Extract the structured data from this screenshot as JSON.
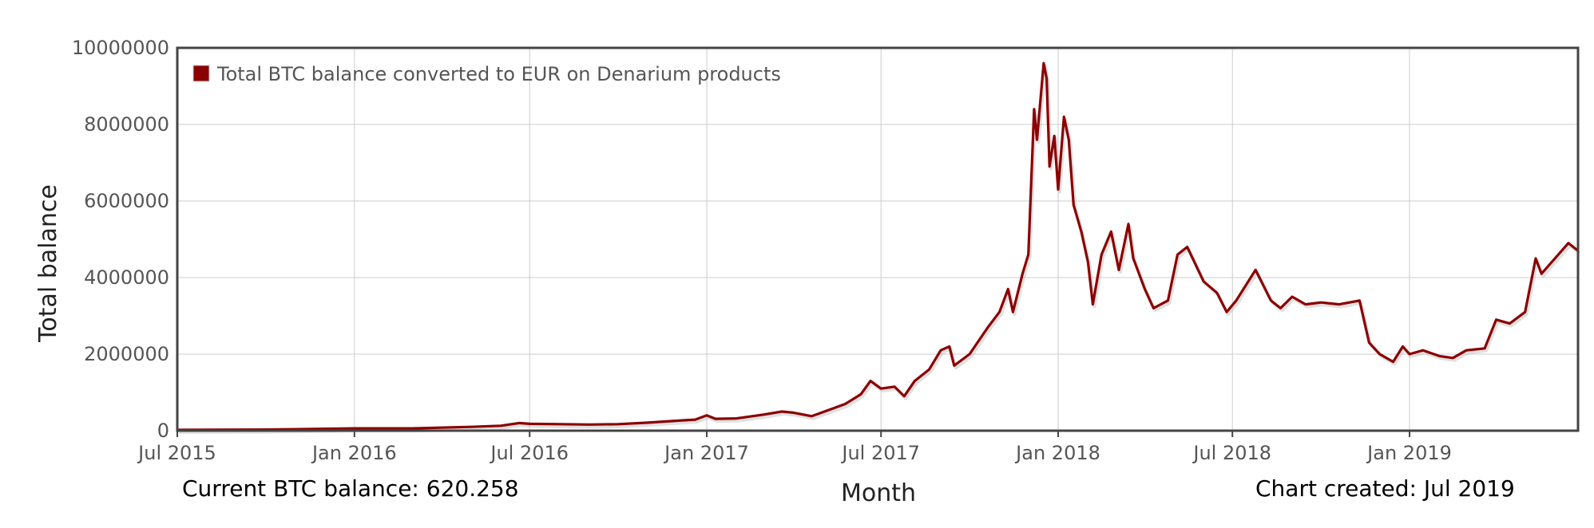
{
  "chart_data": {
    "type": "line",
    "title": "",
    "xlabel": "Month",
    "ylabel": "Total balance",
    "ylim": [
      0,
      10000000
    ],
    "y_ticks": [
      "0",
      "2000000",
      "4000000",
      "6000000",
      "8000000",
      "10000000"
    ],
    "y_tick_values": [
      0,
      2000000,
      4000000,
      6000000,
      8000000,
      10000000
    ],
    "x_ticks": [
      "Jul 2015",
      "Jan 2016",
      "Jul 2016",
      "Jan 2017",
      "Jul 2017",
      "Jan 2018",
      "Jul 2018",
      "Jan 2019"
    ],
    "x_tick_values": [
      "2015-07-01",
      "2016-01-01",
      "2016-07-01",
      "2017-01-01",
      "2017-07-01",
      "2018-01-01",
      "2018-07-01",
      "2019-01-01"
    ],
    "xlim": [
      "2015-07-01",
      "2019-06-25"
    ],
    "grid": true,
    "legend_position": "top-left",
    "series": [
      {
        "name": "Total BTC balance converted to EUR on Denarium products",
        "color": "#8b0000",
        "points": [
          [
            "2015-07-01",
            20000
          ],
          [
            "2015-10-01",
            30000
          ],
          [
            "2016-01-01",
            60000
          ],
          [
            "2016-03-01",
            60000
          ],
          [
            "2016-05-01",
            100000
          ],
          [
            "2016-06-01",
            130000
          ],
          [
            "2016-06-20",
            200000
          ],
          [
            "2016-07-01",
            180000
          ],
          [
            "2016-08-01",
            170000
          ],
          [
            "2016-09-01",
            160000
          ],
          [
            "2016-10-01",
            170000
          ],
          [
            "2016-11-01",
            210000
          ],
          [
            "2016-12-01",
            260000
          ],
          [
            "2016-12-20",
            290000
          ],
          [
            "2017-01-01",
            400000
          ],
          [
            "2017-01-10",
            310000
          ],
          [
            "2017-02-01",
            320000
          ],
          [
            "2017-03-01",
            420000
          ],
          [
            "2017-03-20",
            500000
          ],
          [
            "2017-04-01",
            470000
          ],
          [
            "2017-04-20",
            380000
          ],
          [
            "2017-05-01",
            480000
          ],
          [
            "2017-05-25",
            700000
          ],
          [
            "2017-06-10",
            950000
          ],
          [
            "2017-06-20",
            1300000
          ],
          [
            "2017-07-01",
            1100000
          ],
          [
            "2017-07-15",
            1150000
          ],
          [
            "2017-07-25",
            900000
          ],
          [
            "2017-08-05",
            1300000
          ],
          [
            "2017-08-20",
            1600000
          ],
          [
            "2017-09-01",
            2100000
          ],
          [
            "2017-09-10",
            2200000
          ],
          [
            "2017-09-15",
            1700000
          ],
          [
            "2017-10-01",
            2000000
          ],
          [
            "2017-10-20",
            2700000
          ],
          [
            "2017-11-01",
            3100000
          ],
          [
            "2017-11-10",
            3700000
          ],
          [
            "2017-11-15",
            3100000
          ],
          [
            "2017-11-25",
            4100000
          ],
          [
            "2017-12-01",
            4600000
          ],
          [
            "2017-12-07",
            8400000
          ],
          [
            "2017-12-10",
            7600000
          ],
          [
            "2017-12-17",
            9600000
          ],
          [
            "2017-12-20",
            9200000
          ],
          [
            "2017-12-23",
            6900000
          ],
          [
            "2017-12-28",
            7700000
          ],
          [
            "2018-01-01",
            6300000
          ],
          [
            "2018-01-07",
            8200000
          ],
          [
            "2018-01-12",
            7600000
          ],
          [
            "2018-01-17",
            5900000
          ],
          [
            "2018-01-25",
            5200000
          ],
          [
            "2018-02-01",
            4400000
          ],
          [
            "2018-02-06",
            3300000
          ],
          [
            "2018-02-15",
            4600000
          ],
          [
            "2018-02-25",
            5200000
          ],
          [
            "2018-03-05",
            4200000
          ],
          [
            "2018-03-15",
            5400000
          ],
          [
            "2018-03-20",
            4500000
          ],
          [
            "2018-04-01",
            3700000
          ],
          [
            "2018-04-10",
            3200000
          ],
          [
            "2018-04-25",
            3400000
          ],
          [
            "2018-05-05",
            4600000
          ],
          [
            "2018-05-15",
            4800000
          ],
          [
            "2018-06-01",
            3900000
          ],
          [
            "2018-06-15",
            3600000
          ],
          [
            "2018-06-25",
            3100000
          ],
          [
            "2018-07-05",
            3400000
          ],
          [
            "2018-07-25",
            4200000
          ],
          [
            "2018-08-10",
            3400000
          ],
          [
            "2018-08-20",
            3200000
          ],
          [
            "2018-09-01",
            3500000
          ],
          [
            "2018-09-15",
            3300000
          ],
          [
            "2018-10-01",
            3350000
          ],
          [
            "2018-10-20",
            3300000
          ],
          [
            "2018-11-10",
            3400000
          ],
          [
            "2018-11-20",
            2300000
          ],
          [
            "2018-12-01",
            2000000
          ],
          [
            "2018-12-15",
            1800000
          ],
          [
            "2018-12-25",
            2200000
          ],
          [
            "2019-01-01",
            2000000
          ],
          [
            "2019-01-15",
            2100000
          ],
          [
            "2019-02-01",
            1950000
          ],
          [
            "2019-02-15",
            1900000
          ],
          [
            "2019-03-01",
            2100000
          ],
          [
            "2019-03-20",
            2150000
          ],
          [
            "2019-04-01",
            2900000
          ],
          [
            "2019-04-15",
            2800000
          ],
          [
            "2019-05-01",
            3100000
          ],
          [
            "2019-05-12",
            4500000
          ],
          [
            "2019-05-18",
            4100000
          ],
          [
            "2019-06-01",
            4500000
          ],
          [
            "2019-06-15",
            4900000
          ],
          [
            "2019-06-25",
            4700000
          ]
        ]
      }
    ]
  },
  "footer": {
    "current_balance": "Current BTC balance: 620.258",
    "chart_created": "Chart created: Jul 2019"
  }
}
